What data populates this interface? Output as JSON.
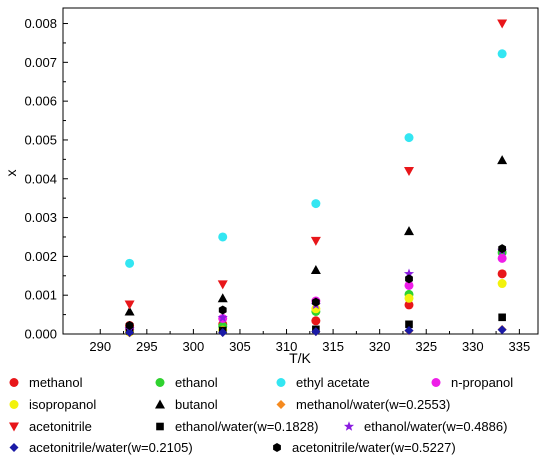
{
  "chart_data": {
    "type": "scatter",
    "xlabel": "T/K",
    "ylabel": "x",
    "xlim": [
      286,
      337
    ],
    "ylim": [
      0,
      0.0084
    ],
    "x_ticks": [
      290,
      295,
      300,
      305,
      310,
      315,
      320,
      325,
      330,
      335
    ],
    "y_ticks": [
      0.0,
      0.001,
      0.002,
      0.003,
      0.004,
      0.005,
      0.006,
      0.007,
      0.008
    ],
    "y_tick_labels": [
      "0.000",
      "0.001",
      "0.002",
      "0.003",
      "0.004",
      "0.005",
      "0.006",
      "0.007",
      "0.008"
    ],
    "grid": false,
    "legend_position": "bottom",
    "x": [
      293.15,
      303.15,
      313.15,
      323.15,
      333.15
    ],
    "series": [
      {
        "name": "methanol",
        "color": "#e8161a",
        "marker": "circle",
        "values": [
          0.00022,
          0.00025,
          0.00034,
          0.00075,
          0.00155
        ]
      },
      {
        "name": "ethanol",
        "color": "#2fd22f",
        "marker": "circle",
        "values": [
          0.00012,
          0.0002,
          0.00058,
          0.00102,
          0.0021
        ]
      },
      {
        "name": "ethyl acetate",
        "color": "#33e6f2",
        "marker": "circle",
        "values": [
          0.00182,
          0.0025,
          0.00336,
          0.00506,
          0.00722
        ]
      },
      {
        "name": "n-propanol",
        "color": "#ee1ee8",
        "marker": "circle",
        "values": [
          0.00012,
          0.0004,
          0.00085,
          0.00125,
          0.00195
        ]
      },
      {
        "name": "isopropanol",
        "color": "#f2f20c",
        "marker": "circle",
        "values": [
          5e-05,
          0.0001,
          0.00065,
          0.00092,
          0.0013
        ]
      },
      {
        "name": "butanol",
        "color": "#000000",
        "marker": "triangle-up",
        "values": [
          0.00058,
          0.00092,
          0.00165,
          0.00265,
          0.00448
        ]
      },
      {
        "name": "methanol/water(w=0.2553)",
        "color": "#f58a1f",
        "marker": "diamond",
        "values": [
          3e-05,
          4e-05,
          6e-05,
          8e-05,
          0.00012
        ]
      },
      {
        "name": "acetonitrile",
        "color": "#e8161a",
        "marker": "triangle-down",
        "values": [
          0.00076,
          0.00128,
          0.0024,
          0.0042,
          0.008
        ]
      },
      {
        "name": "ethanol/water(w=0.1828)",
        "color": "#000000",
        "marker": "square",
        "values": [
          8e-05,
          9e-05,
          0.00012,
          0.00025,
          0.00043
        ]
      },
      {
        "name": "ethanol/water(w=0.4886)",
        "color": "#8a1ce0",
        "marker": "star",
        "values": [
          0.00013,
          0.00042,
          0.00075,
          0.00155,
          0.00215
        ]
      },
      {
        "name": "acetonitrile/water(w=0.2105)",
        "color": "#1a1aa6",
        "marker": "diamond",
        "values": [
          4e-05,
          4e-05,
          6e-05,
          9e-05,
          0.00011
        ]
      },
      {
        "name": "acetonitrile/water(w=0.5227)",
        "color": "#000000",
        "marker": "hexagon",
        "values": [
          0.00022,
          0.00062,
          0.00082,
          0.00142,
          0.0022
        ]
      }
    ]
  }
}
